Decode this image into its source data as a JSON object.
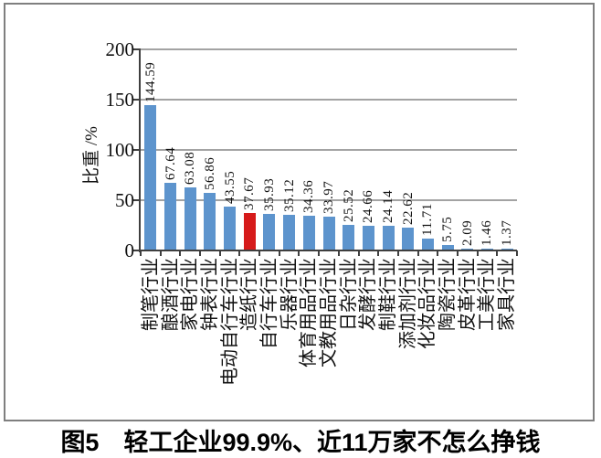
{
  "chart_data": {
    "type": "bar",
    "title": "图5　轻工企业99.9%、近11万家不怎么挣钱",
    "ylabel": "比重 /%",
    "xlabel": "",
    "ylim": [
      0,
      200
    ],
    "yticks": [
      0,
      50,
      100,
      150,
      200
    ],
    "grid": true,
    "legend": false,
    "categories": [
      "制笔行业",
      "酿酒行业",
      "家电行业",
      "钟表行业",
      "电动自行车行业",
      "造纸行业",
      "自行车行业",
      "乐器行业",
      "体育用品行业",
      "文教用品行业",
      "日杂行业",
      "发酵行业",
      "制鞋行业",
      "添加剂行业",
      "化妆品行业",
      "陶瓷行业",
      "皮革行业",
      "工美行业",
      "家具行业"
    ],
    "values": [
      144.59,
      67.64,
      63.08,
      56.86,
      43.55,
      37.67,
      35.93,
      35.12,
      34.36,
      33.97,
      25.52,
      24.66,
      24.14,
      22.62,
      11.71,
      5.75,
      2.09,
      1.46,
      1.37
    ],
    "highlight_index": 5,
    "highlighted_category": "造纸行业",
    "colors": {
      "bar": "#5D94CD",
      "highlight": "#D61A1A",
      "gridline": "#A3A3A3",
      "axis": "#3F3F3F",
      "frame": "#7F7F7F",
      "text": "#111111"
    }
  }
}
